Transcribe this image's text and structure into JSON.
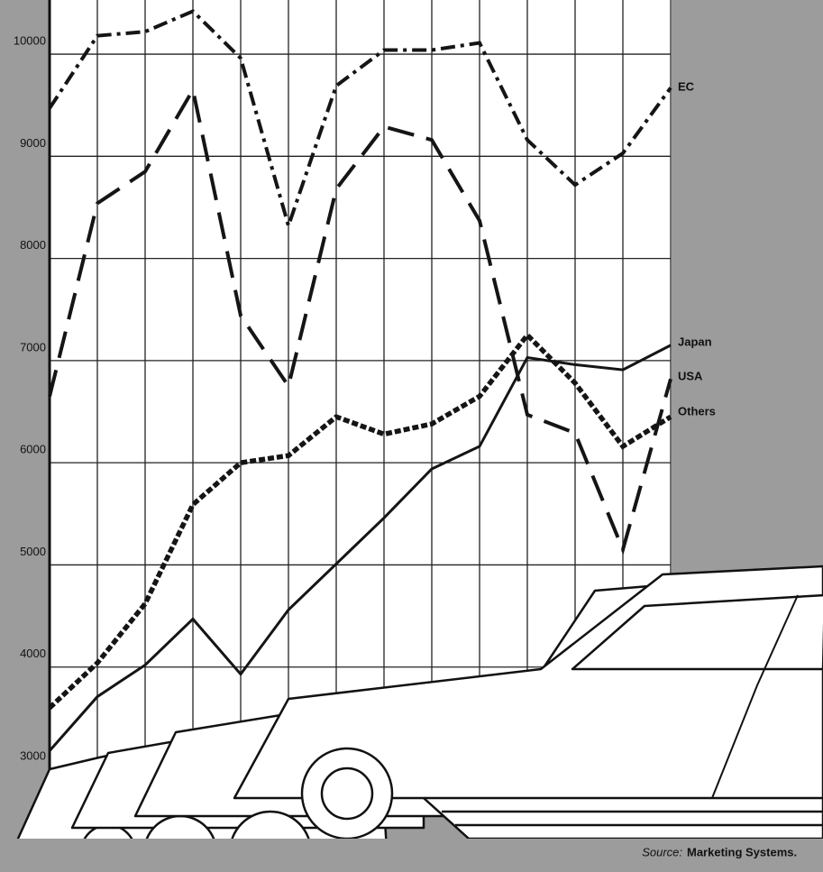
{
  "chart_data": {
    "type": "line",
    "categories": [
      null,
      null,
      null,
      null,
      null,
      null,
      null,
      null,
      null,
      null,
      null,
      null,
      null,
      null
    ],
    "series": [
      {
        "name": "EC",
        "color": "#151515",
        "values": [
          9470,
          10180,
          10220,
          10420,
          9960,
          8320,
          9690,
          10040,
          10040,
          10110,
          9160,
          8720,
          9030,
          9670
        ]
      },
      {
        "name": "Japan",
        "color": "#151515",
        "values": [
          3180,
          3710,
          4020,
          4470,
          3930,
          4560,
          5010,
          5460,
          5940,
          6160,
          7030,
          6960,
          6910,
          7150
        ]
      },
      {
        "name": "USA",
        "color": "#151515",
        "values": [
          6650,
          8540,
          8850,
          9650,
          7440,
          6750,
          8680,
          9290,
          9160,
          8370,
          6470,
          6290,
          5150,
          6820
        ]
      },
      {
        "name": "Others",
        "color": "#151515",
        "values": [
          3600,
          4040,
          4620,
          5590,
          6000,
          6070,
          6450,
          6280,
          6380,
          6650,
          7250,
          6780,
          6160,
          6450
        ]
      }
    ],
    "ylim": [
      3000,
      10530
    ],
    "yticks": [
      3000,
      4000,
      5000,
      6000,
      7000,
      8000,
      9000,
      10000
    ],
    "grid": true,
    "source_label": "Source:",
    "source_text": "Marketing Systems."
  }
}
